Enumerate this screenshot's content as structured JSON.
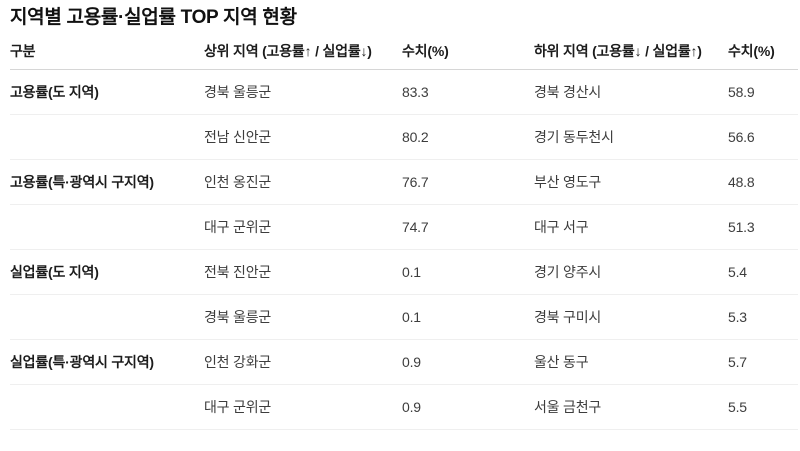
{
  "title": "지역별 고용률·실업률 TOP 지역 현황",
  "colors": {
    "title_text": "#111111",
    "header_text": "#1c1c1c",
    "body_text": "#3d3d3d",
    "header_border": "#d6d6d6",
    "row_border": "#efefef",
    "background": "#ffffff"
  },
  "table": {
    "headers": {
      "category": "구분",
      "top_region": "상위 지역 (고용률↑ / 실업률↓)",
      "top_value": "수치(%)",
      "bottom_region": "하위 지역 (고용률↓ / 실업률↑)",
      "bottom_value": "수치(%)"
    },
    "rows": [
      {
        "category": "고용률(도 지역)",
        "top_region": "경북 울릉군",
        "top_value": "83.3",
        "bottom_region": "경북 경산시",
        "bottom_value": "58.9"
      },
      {
        "category": "",
        "top_region": "전남 신안군",
        "top_value": "80.2",
        "bottom_region": "경기 동두천시",
        "bottom_value": "56.6"
      },
      {
        "category": "고용률(특·광역시 구지역)",
        "top_region": "인천 옹진군",
        "top_value": "76.7",
        "bottom_region": "부산 영도구",
        "bottom_value": "48.8"
      },
      {
        "category": "",
        "top_region": "대구 군위군",
        "top_value": "74.7",
        "bottom_region": "대구 서구",
        "bottom_value": "51.3"
      },
      {
        "category": "실업률(도 지역)",
        "top_region": "전북 진안군",
        "top_value": "0.1",
        "bottom_region": "경기 양주시",
        "bottom_value": "5.4"
      },
      {
        "category": "",
        "top_region": "경북 울릉군",
        "top_value": "0.1",
        "bottom_region": "경북 구미시",
        "bottom_value": "5.3"
      },
      {
        "category": "실업률(특·광역시 구지역)",
        "top_region": "인천 강화군",
        "top_value": "0.9",
        "bottom_region": "울산 동구",
        "bottom_value": "5.7"
      },
      {
        "category": "",
        "top_region": "대구 군위군",
        "top_value": "0.9",
        "bottom_region": "서울 금천구",
        "bottom_value": "5.5"
      }
    ]
  },
  "chart_data": {
    "type": "table",
    "title": "지역별 고용률·실업률 TOP 지역 현황",
    "columns": [
      "구분",
      "상위 지역 (고용률↑ / 실업률↓)",
      "수치(%)",
      "하위 지역 (고용률↓ / 실업률↑)",
      "수치(%)"
    ],
    "rows": [
      [
        "고용률(도 지역)",
        "경북 울릉군",
        83.3,
        "경북 경산시",
        58.9
      ],
      [
        "",
        "전남 신안군",
        80.2,
        "경기 동두천시",
        56.6
      ],
      [
        "고용률(특·광역시 구지역)",
        "인천 옹진군",
        76.7,
        "부산 영도구",
        48.8
      ],
      [
        "",
        "대구 군위군",
        74.7,
        "대구 서구",
        51.3
      ],
      [
        "실업률(도 지역)",
        "전북 진안군",
        0.1,
        "경기 양주시",
        5.4
      ],
      [
        "",
        "경북 울릉군",
        0.1,
        "경북 구미시",
        5.3
      ],
      [
        "실업률(특·광역시 구지역)",
        "인천 강화군",
        0.9,
        "울산 동구",
        5.7
      ],
      [
        "",
        "대구 군위군",
        0.9,
        "서울 금천구",
        5.5
      ]
    ]
  }
}
